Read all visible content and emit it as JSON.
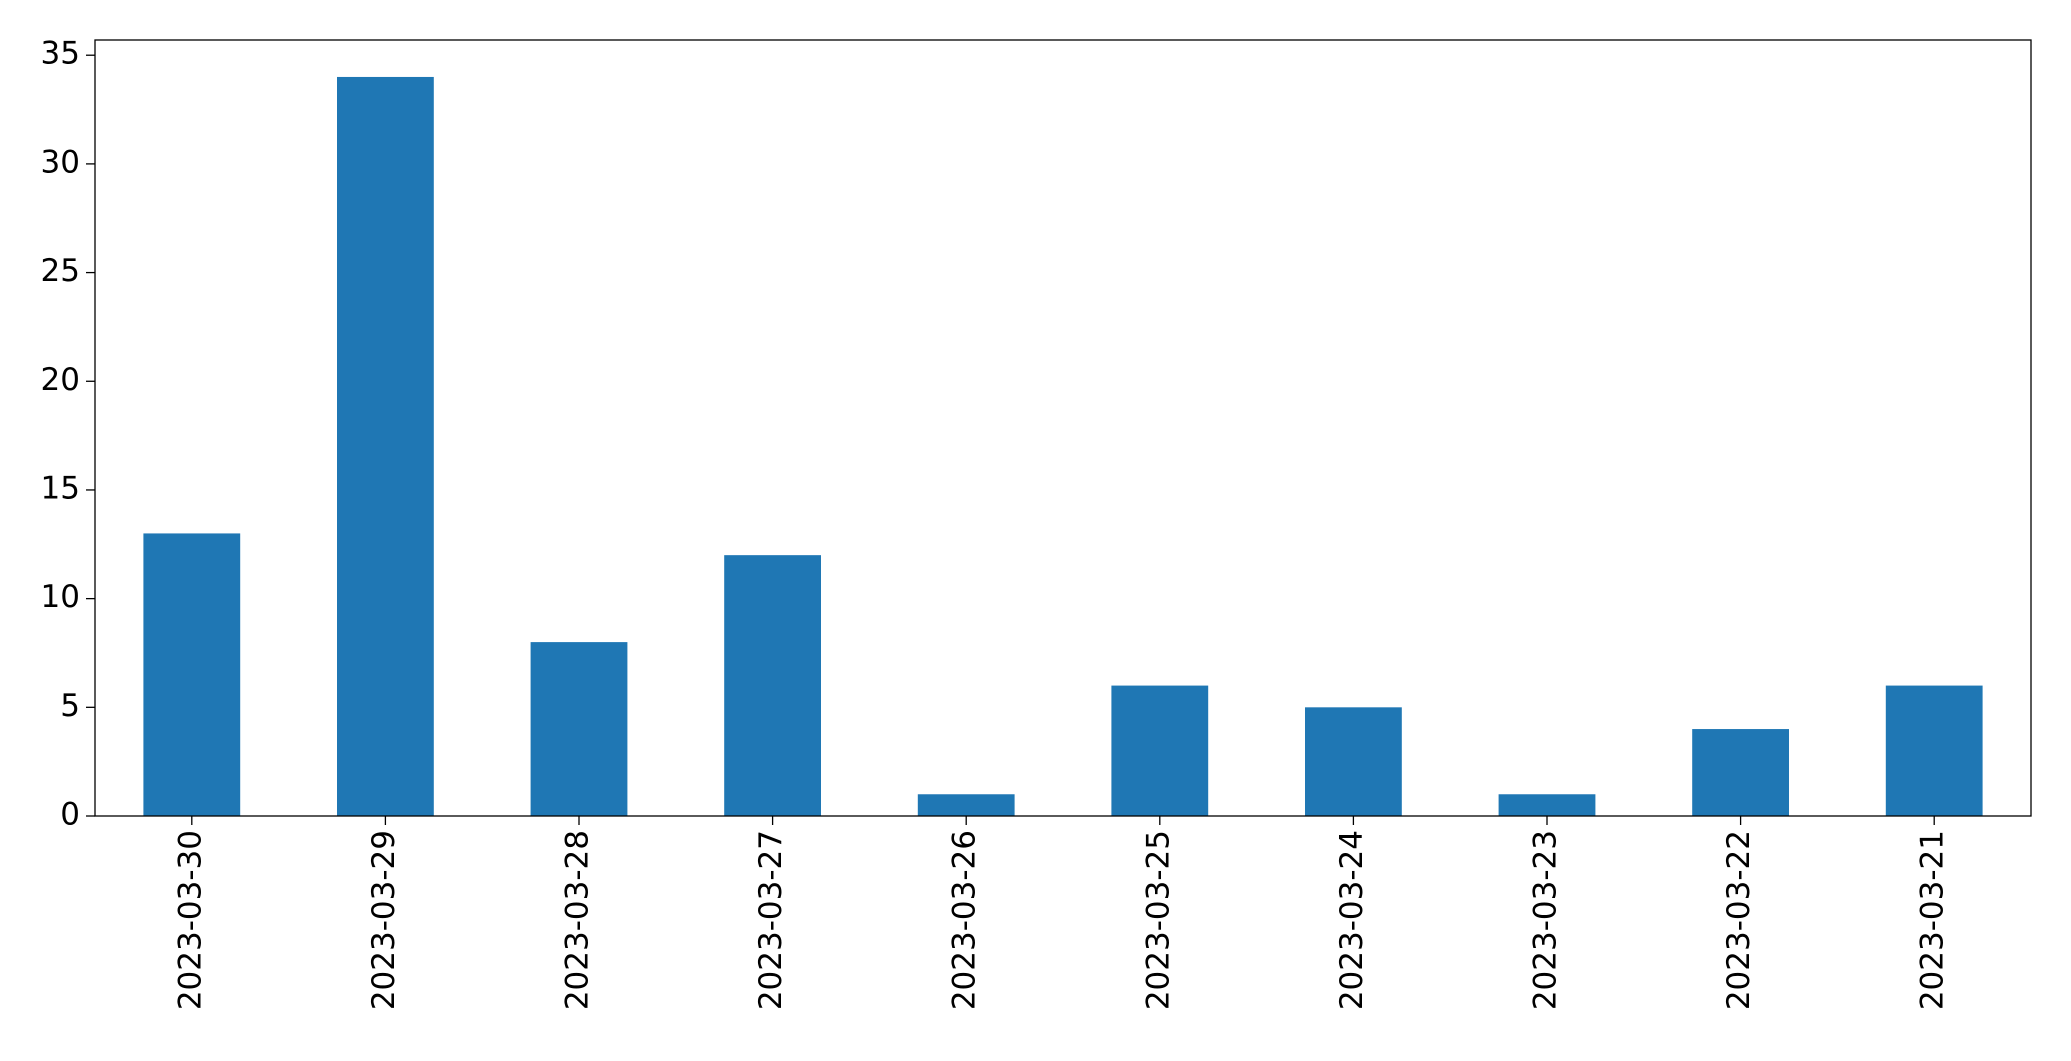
{
  "chart_data": {
    "type": "bar",
    "categories": [
      "2023-03-30",
      "2023-03-29",
      "2023-03-28",
      "2023-03-27",
      "2023-03-26",
      "2023-03-25",
      "2023-03-24",
      "2023-03-23",
      "2023-03-22",
      "2023-03-21"
    ],
    "values": [
      13,
      34,
      8,
      12,
      1,
      6,
      5,
      1,
      4,
      6
    ],
    "color": "#1f77b4",
    "ylim": [
      0,
      35.7
    ],
    "yticks": [
      0,
      5,
      10,
      15,
      20,
      25,
      30,
      35
    ],
    "grid": false
  }
}
